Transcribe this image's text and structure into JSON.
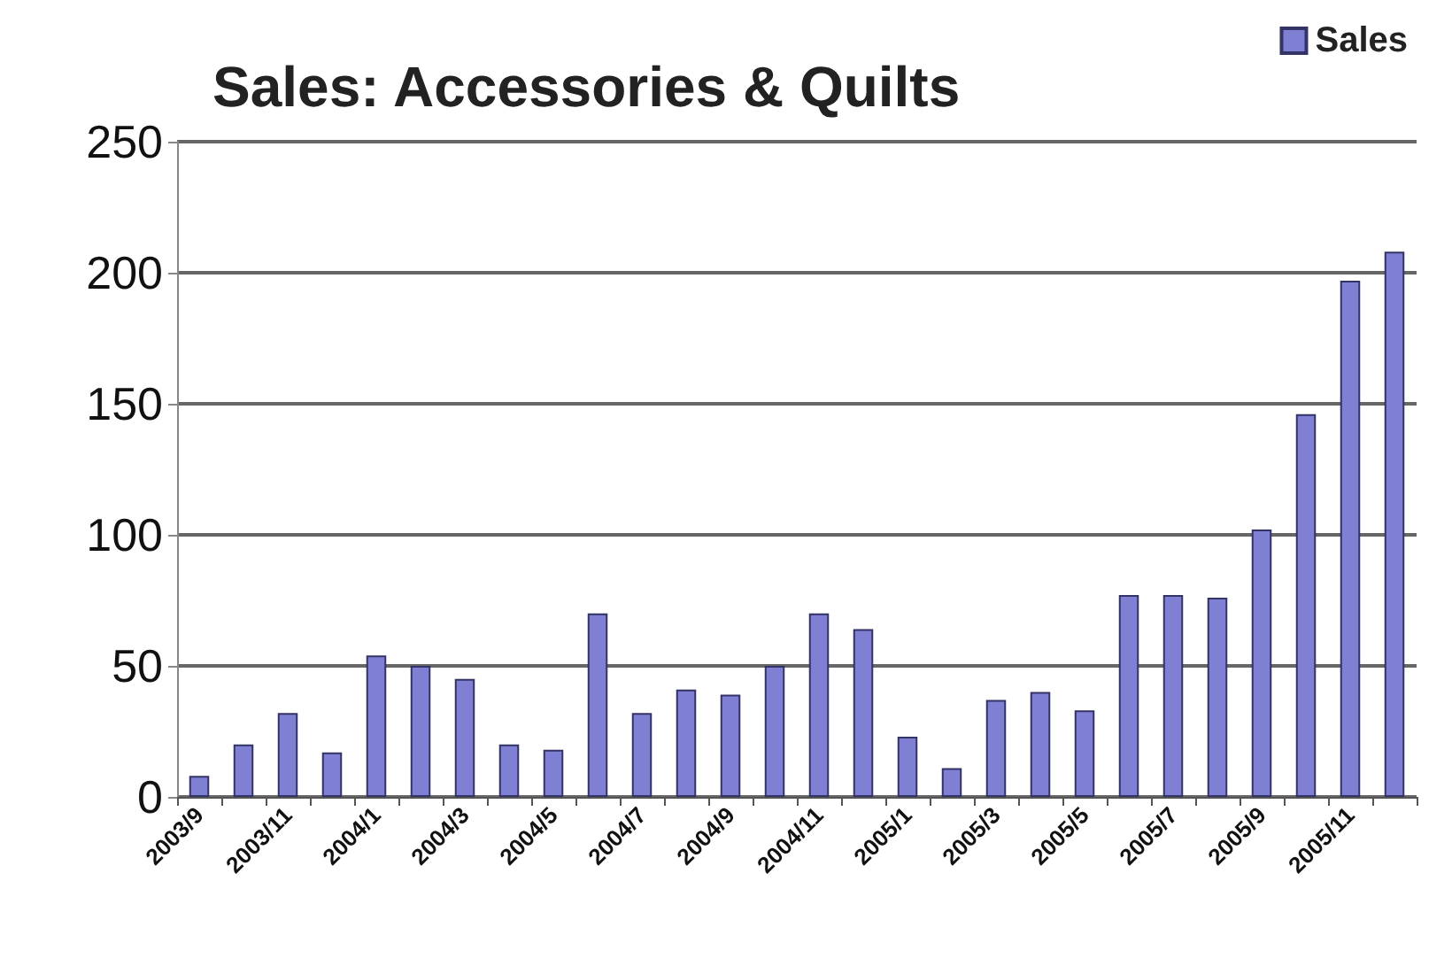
{
  "chart_data": {
    "type": "bar",
    "title": "Sales: Accessories & Quilts",
    "categories": [
      "2003/9",
      null,
      "2003/11",
      null,
      "2004/1",
      null,
      "2004/3",
      null,
      "2004/5",
      null,
      "2004/7",
      null,
      "2004/9",
      null,
      "2004/11",
      null,
      "2005/1",
      null,
      "2005/3",
      null,
      "2005/5",
      null,
      "2005/7",
      null,
      "2005/9",
      null,
      "2005/11",
      null
    ],
    "series": [
      {
        "name": "Sales",
        "color": "#7f7fd4",
        "values": [
          8,
          20,
          32,
          17,
          54,
          50,
          45,
          20,
          18,
          70,
          32,
          41,
          39,
          50,
          70,
          64,
          23,
          11,
          37,
          40,
          33,
          77,
          77,
          76,
          102,
          146,
          197,
          208
        ]
      }
    ],
    "ylim": [
      0,
      250
    ],
    "yticks": [
      0,
      50,
      100,
      150,
      200,
      250
    ],
    "grid": "y",
    "legend": "top right"
  }
}
